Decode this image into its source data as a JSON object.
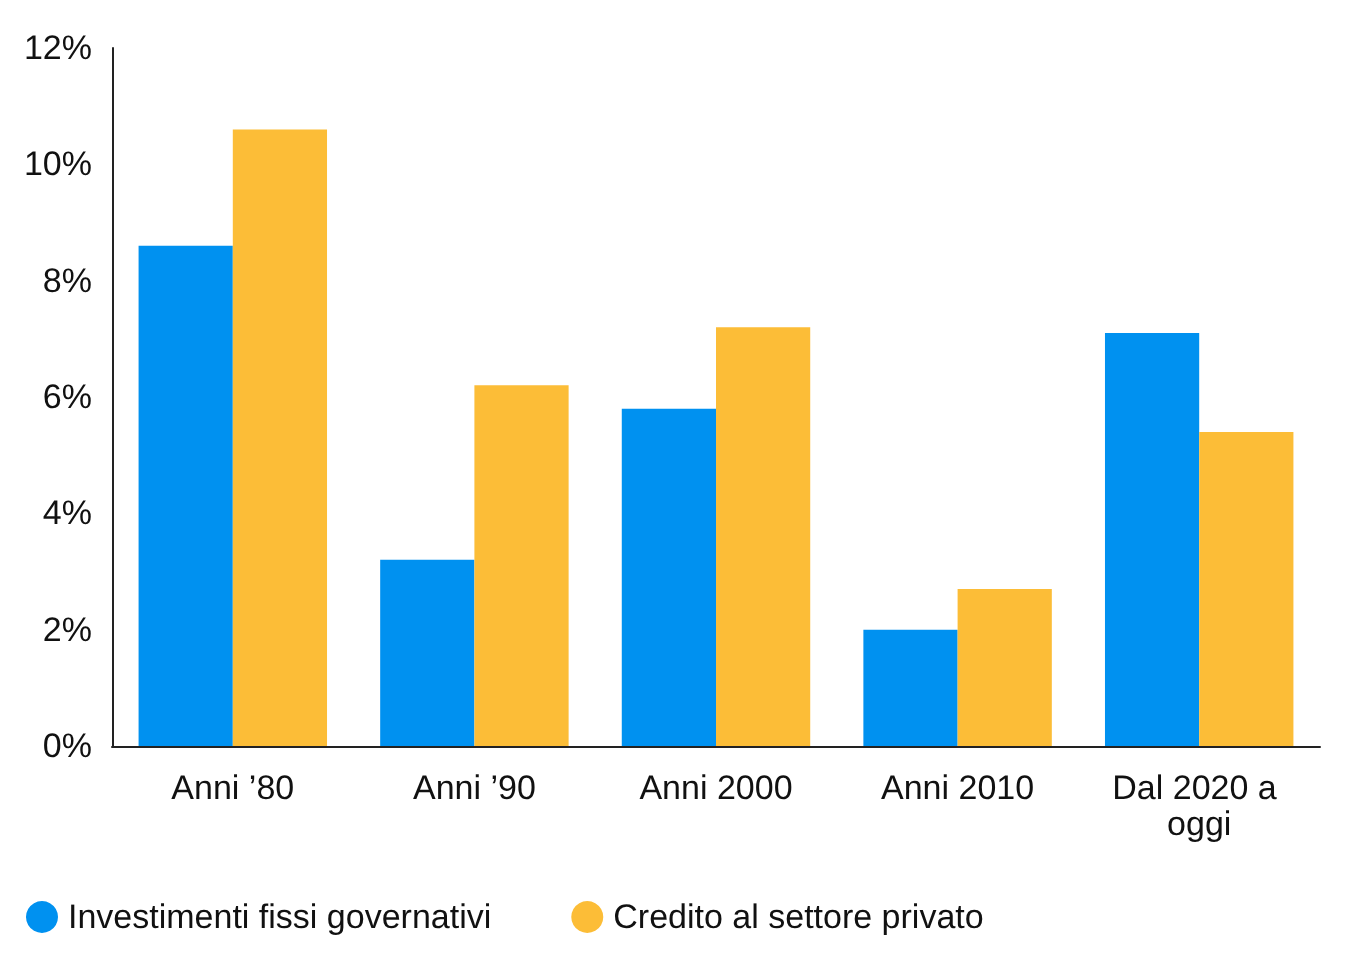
{
  "chart_data": {
    "type": "bar",
    "categories": [
      "Anni ’80",
      "Anni ’90",
      "Anni 2000",
      "Anni 2010",
      "Dal 2020 a oggi"
    ],
    "series": [
      {
        "name": "Investimenti fissi governativi",
        "color": "#0091f0",
        "values": [
          8.6,
          3.2,
          5.8,
          2.0,
          7.1
        ]
      },
      {
        "name": "Credito al settore privato",
        "color": "#fcbd37",
        "values": [
          10.6,
          6.2,
          7.2,
          2.7,
          5.4
        ]
      }
    ],
    "ylim": [
      0,
      12
    ],
    "yticks": [
      {
        "value": 0,
        "label": "0%"
      },
      {
        "value": 2,
        "label": "2%"
      },
      {
        "value": 4,
        "label": "4%"
      },
      {
        "value": 6,
        "label": "6%"
      },
      {
        "value": 8,
        "label": "8%"
      },
      {
        "value": 10,
        "label": "10%"
      },
      {
        "value": 12,
        "label": "12%"
      }
    ],
    "grid": false,
    "legend": "bottom left"
  }
}
